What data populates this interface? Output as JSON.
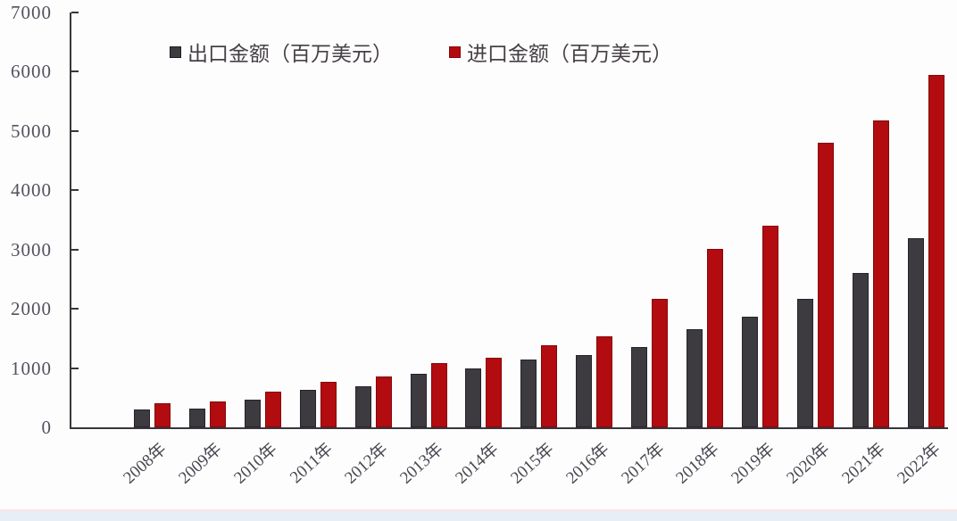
{
  "chart_data": {
    "type": "bar",
    "title": "",
    "xlabel": "",
    "ylabel": "",
    "categories": [
      "2008年",
      "2009年",
      "2010年",
      "2011年",
      "2012年",
      "2013年",
      "2014年",
      "2015年",
      "2016年",
      "2017年",
      "2018年",
      "2019年",
      "2020年",
      "2021年",
      "2022年"
    ],
    "series": [
      {
        "name": "出口金额（百万美元）",
        "color": "#3d3b3f",
        "values": [
          295,
          310,
          465,
          625,
          700,
          900,
          1000,
          1140,
          1215,
          1355,
          1660,
          1865,
          2170,
          2610,
          3185
        ]
      },
      {
        "name": "进口金额（百万美元）",
        "color": "#b20c10",
        "values": [
          405,
          435,
          600,
          770,
          860,
          1090,
          1175,
          1385,
          1535,
          2170,
          3010,
          3400,
          4800,
          5175,
          5950
        ]
      }
    ],
    "ylim": [
      0,
      7000
    ],
    "yticks": [
      0,
      1000,
      2000,
      3000,
      4000,
      5000,
      6000,
      7000
    ],
    "grid": false,
    "legend_position": "top-center",
    "axis_color": "#39363c",
    "background_color": "#fdfdfe"
  }
}
